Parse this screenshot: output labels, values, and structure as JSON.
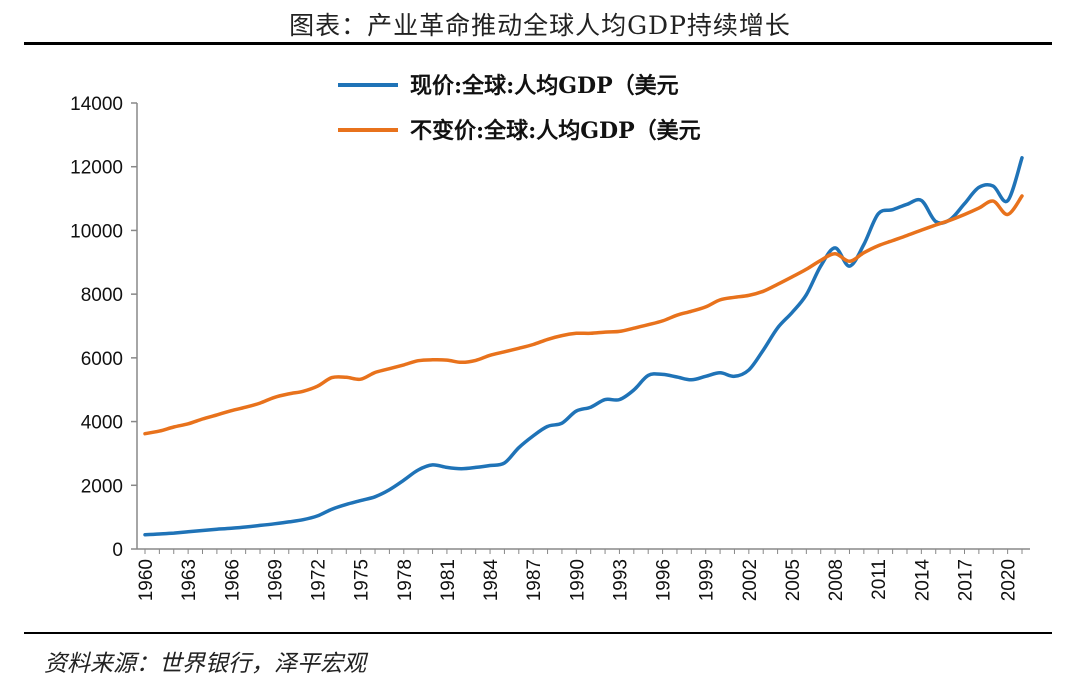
{
  "title": "图表：产业革命推动全球人均GDP持续增长",
  "source": "资料来源：世界银行，泽平宏观",
  "colors": {
    "current": "#1f73b7",
    "constant": "#e8721c"
  },
  "chart_data": {
    "type": "line",
    "title": "图表：产业革命推动全球人均GDP持续增长",
    "xlabel": "",
    "ylabel": "",
    "ylim": [
      0,
      14000
    ],
    "y_ticks": [
      0,
      2000,
      4000,
      6000,
      8000,
      10000,
      12000,
      14000
    ],
    "x_tick_labels": [
      "1960",
      "1963",
      "1966",
      "1969",
      "1972",
      "1975",
      "1978",
      "1981",
      "1984",
      "1987",
      "1990",
      "1993",
      "1996",
      "1999",
      "2002",
      "2005",
      "2008",
      "2011",
      "2014",
      "2017",
      "2020"
    ],
    "legend_position": "top-center",
    "grid": false,
    "x": [
      1960,
      1961,
      1962,
      1963,
      1964,
      1965,
      1966,
      1967,
      1968,
      1969,
      1970,
      1971,
      1972,
      1973,
      1974,
      1975,
      1976,
      1977,
      1978,
      1979,
      1980,
      1981,
      1982,
      1983,
      1984,
      1985,
      1986,
      1987,
      1988,
      1989,
      1990,
      1991,
      1992,
      1993,
      1994,
      1995,
      1996,
      1997,
      1998,
      1999,
      2000,
      2001,
      2002,
      2003,
      2004,
      2005,
      2006,
      2007,
      2008,
      2009,
      2010,
      2011,
      2012,
      2013,
      2014,
      2015,
      2016,
      2017,
      2018,
      2019,
      2020,
      2021
    ],
    "series": [
      {
        "name": "现价:全球:人均GDP（美元",
        "values": [
          450,
          470,
          500,
          540,
          580,
          620,
          650,
          690,
          740,
          790,
          850,
          920,
          1040,
          1250,
          1400,
          1520,
          1640,
          1860,
          2160,
          2480,
          2640,
          2560,
          2520,
          2560,
          2620,
          2700,
          3180,
          3550,
          3850,
          3950,
          4330,
          4450,
          4690,
          4690,
          4990,
          5450,
          5480,
          5400,
          5310,
          5420,
          5530,
          5420,
          5620,
          6240,
          6940,
          7420,
          7980,
          8880,
          9450,
          8880,
          9560,
          10520,
          10650,
          10820,
          10940,
          10280,
          10340,
          10840,
          11350,
          11390,
          10930,
          12280
        ]
      },
      {
        "name": "不变价:全球:人均GDP（美元",
        "values": [
          3620,
          3700,
          3830,
          3930,
          4080,
          4210,
          4340,
          4450,
          4580,
          4760,
          4870,
          4950,
          5110,
          5380,
          5390,
          5330,
          5540,
          5660,
          5780,
          5910,
          5940,
          5930,
          5860,
          5920,
          6080,
          6190,
          6300,
          6420,
          6580,
          6700,
          6770,
          6770,
          6810,
          6830,
          6930,
          7040,
          7160,
          7340,
          7460,
          7600,
          7820,
          7900,
          7960,
          8090,
          8310,
          8540,
          8780,
          9060,
          9270,
          9030,
          9300,
          9520,
          9680,
          9840,
          10010,
          10170,
          10320,
          10500,
          10700,
          10920,
          10500,
          11080
        ]
      }
    ]
  }
}
